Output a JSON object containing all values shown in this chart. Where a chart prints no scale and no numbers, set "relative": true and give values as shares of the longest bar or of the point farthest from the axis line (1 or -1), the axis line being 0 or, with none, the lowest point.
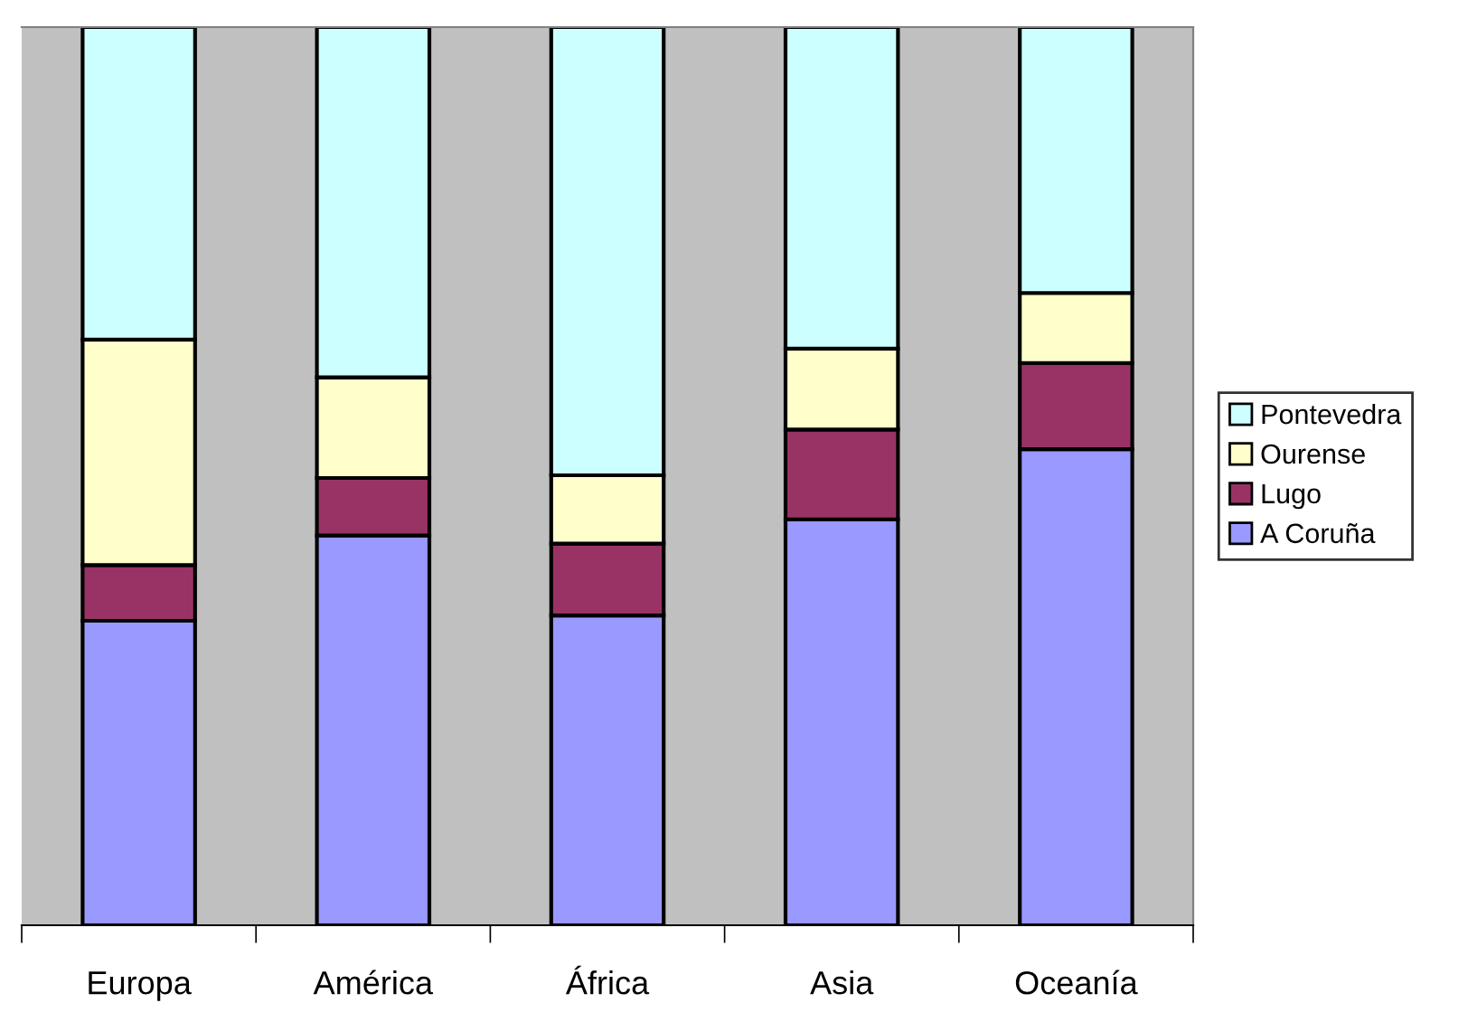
{
  "chart_data": {
    "type": "bar",
    "stacked": true,
    "relative": true,
    "legend": "right",
    "grid": false,
    "categories": [
      "Europa",
      "América",
      "África",
      "Asia",
      "Oceanía"
    ],
    "series": [
      {
        "name": "A Coruña",
        "color": "#9999ff",
        "values": [
          0.339,
          0.434,
          0.345,
          0.452,
          0.53
        ]
      },
      {
        "name": "Lugo",
        "color": "#993366",
        "values": [
          0.062,
          0.064,
          0.08,
          0.1,
          0.096
        ]
      },
      {
        "name": "Ourense",
        "color": "#ffffcc",
        "values": [
          0.251,
          0.112,
          0.076,
          0.09,
          0.078
        ]
      },
      {
        "name": "Pontevedra",
        "color": "#ccffff",
        "values": [
          0.348,
          0.39,
          0.499,
          0.358,
          0.296
        ]
      }
    ]
  }
}
